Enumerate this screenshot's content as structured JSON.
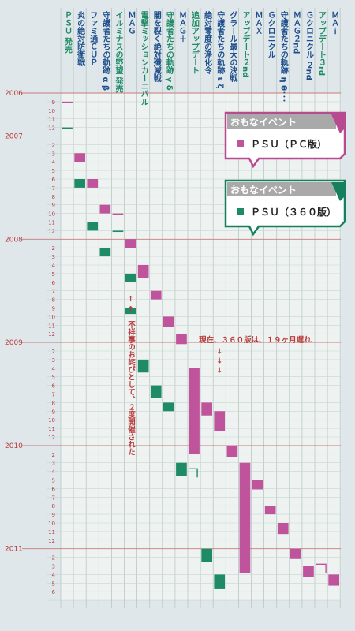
{
  "chart_data": {
    "type": "timeline",
    "y_start": "2006-08",
    "y_end": "2011-06",
    "year_labels": [
      "2006",
      "2007",
      "2008",
      "2009",
      "2010",
      "2011"
    ],
    "month_labels": [
      "1",
      "2",
      "3",
      "4",
      "5",
      "6",
      "7",
      "8",
      "9",
      "10",
      "11",
      "12"
    ],
    "colors": {
      "pc": "#c0549c",
      "x360": "#1f8a66",
      "pc_border": "#b84a92",
      "x360_border": "#16805e"
    },
    "columns": [
      {
        "label": "ＰＳＵ 発売",
        "color": "green"
      },
      {
        "label": "炎の絶対防衛戦",
        "color": "blue"
      },
      {
        "label": "ファミ通ＣＵＰ",
        "color": "blue"
      },
      {
        "label": "守護者たちの軌跡 α β",
        "color": "blue"
      },
      {
        "label": "イルミナスの野望 発売",
        "color": "green"
      },
      {
        "label": "ＭＡＧ",
        "color": "blue"
      },
      {
        "label": "電撃ミッションカーニバル",
        "color": "green"
      },
      {
        "label": "闇を裂く絶対殲滅戦",
        "color": "blue"
      },
      {
        "label": "守護者たちの軌跡 γ δ",
        "color": "green"
      },
      {
        "label": "ＭＡＧ＋",
        "color": "blue"
      },
      {
        "label": "追加アップデート",
        "color": "green"
      },
      {
        "label": "絶対零度の浄化令",
        "color": "blue"
      },
      {
        "label": "守護者たちの軌跡 ε ζ",
        "color": "blue"
      },
      {
        "label": "グラール最大の決戦",
        "color": "blue"
      },
      {
        "label": "アップデート２nd",
        "color": "green"
      },
      {
        "label": "ＭＡＸ",
        "color": "blue"
      },
      {
        "label": "Ｇクロニクル",
        "color": "blue"
      },
      {
        "label": "守護者たちの軌跡 η θ･･･",
        "color": "blue"
      },
      {
        "label": "ＭＡＧ２nd",
        "color": "blue"
      },
      {
        "label": "Ｇクロニクル ２nd",
        "color": "blue"
      },
      {
        "label": "アップデート３rd",
        "color": "green"
      },
      {
        "label": "ＭＡｉ",
        "color": "blue"
      }
    ],
    "events": [
      {
        "col": 0,
        "platform": "pc",
        "start": "2006-09",
        "months": 0.15
      },
      {
        "col": 0,
        "platform": "x360",
        "start": "2006-12",
        "months": 0.15
      },
      {
        "col": 1,
        "platform": "pc",
        "start": "2007-03",
        "months": 1
      },
      {
        "col": 1,
        "platform": "x360",
        "start": "2007-06",
        "months": 1
      },
      {
        "col": 2,
        "platform": "pc",
        "start": "2007-06",
        "months": 1
      },
      {
        "col": 2,
        "platform": "x360",
        "start": "2007-11",
        "months": 1
      },
      {
        "col": 3,
        "platform": "pc",
        "start": "2007-09",
        "months": 1
      },
      {
        "col": 3,
        "platform": "x360",
        "start": "2008-02",
        "months": 1
      },
      {
        "col": 4,
        "platform": "pc",
        "start": "2007-10",
        "months": 0.15
      },
      {
        "col": 4,
        "platform": "x360",
        "start": "2007-12",
        "months": 0.15
      },
      {
        "col": 5,
        "platform": "pc",
        "start": "2008-01",
        "months": 1
      },
      {
        "col": 5,
        "platform": "x360",
        "start": "2008-05",
        "months": 1
      },
      {
        "col": 5,
        "platform": "x360",
        "start": "2008-09",
        "months": 0.7
      },
      {
        "col": 6,
        "platform": "pc",
        "start": "2008-04",
        "months": 1.5
      },
      {
        "col": 6,
        "platform": "x360",
        "start": "2009-03",
        "months": 1.5
      },
      {
        "col": 7,
        "platform": "pc",
        "start": "2008-07",
        "months": 1
      },
      {
        "col": 7,
        "platform": "x360",
        "start": "2009-06",
        "months": 1.5
      },
      {
        "col": 8,
        "platform": "pc",
        "start": "2008-10",
        "months": 1.2
      },
      {
        "col": 8,
        "platform": "x360",
        "start": "2009-08",
        "months": 1
      },
      {
        "col": 9,
        "platform": "pc",
        "start": "2008-12",
        "months": 1.2
      },
      {
        "col": 9,
        "platform": "x360",
        "start": "2010-03",
        "months": 1.5
      },
      {
        "col": 10,
        "platform": "pc",
        "start": "2009-04",
        "months": 10
      },
      {
        "col": 11,
        "platform": "pc",
        "start": "2009-08",
        "months": 1.5
      },
      {
        "col": 11,
        "platform": "x360",
        "start": "2011-01",
        "months": 1.5
      },
      {
        "col": 12,
        "platform": "pc",
        "start": "2009-09",
        "months": 2.3
      },
      {
        "col": 12,
        "platform": "x360",
        "start": "2011-04",
        "months": 1.7
      },
      {
        "col": 13,
        "platform": "pc",
        "start": "2010-01",
        "months": 1.3
      },
      {
        "col": 14,
        "platform": "pc",
        "start": "2010-03",
        "months": 12.8
      },
      {
        "col": 15,
        "platform": "pc",
        "start": "2010-05",
        "months": 1.1
      },
      {
        "col": 16,
        "platform": "pc",
        "start": "2010-08",
        "months": 1
      },
      {
        "col": 17,
        "platform": "pc",
        "start": "2010-10",
        "months": 1.3
      },
      {
        "col": 18,
        "platform": "pc",
        "start": "2011-01",
        "months": 1.2
      },
      {
        "col": 19,
        "platform": "pc",
        "start": "2011-03",
        "months": 1.3
      },
      {
        "col": 21,
        "platform": "pc",
        "start": "2011-04",
        "months": 1.3
      }
    ],
    "annotations": [
      {
        "text": "↑",
        "month_index": 24.2,
        "col": 5
      },
      {
        "text": "↑",
        "month_index": 25.4,
        "col": 5
      },
      {
        "text": "不祥事のお詫びとして、２度開催された",
        "month_index": 26.5,
        "col": 5,
        "vertical": true
      },
      {
        "text": "現在、３６０版は、１９ヶ月遅れ",
        "month_index": 29.0,
        "col": 11
      },
      {
        "text": "↓",
        "month_index": 30.3,
        "col": 12
      },
      {
        "text": "↓",
        "month_index": 31.4,
        "col": 12
      },
      {
        "text": "↓",
        "month_index": 32.5,
        "col": 12
      }
    ],
    "legends": [
      {
        "title": "おもなイベント",
        "item": "ＰＳＵ（ＰＣ版）",
        "platform": "pc"
      },
      {
        "title": "おもなイベント",
        "item": "ＰＳＵ（３６０版）",
        "platform": "x360"
      }
    ]
  }
}
